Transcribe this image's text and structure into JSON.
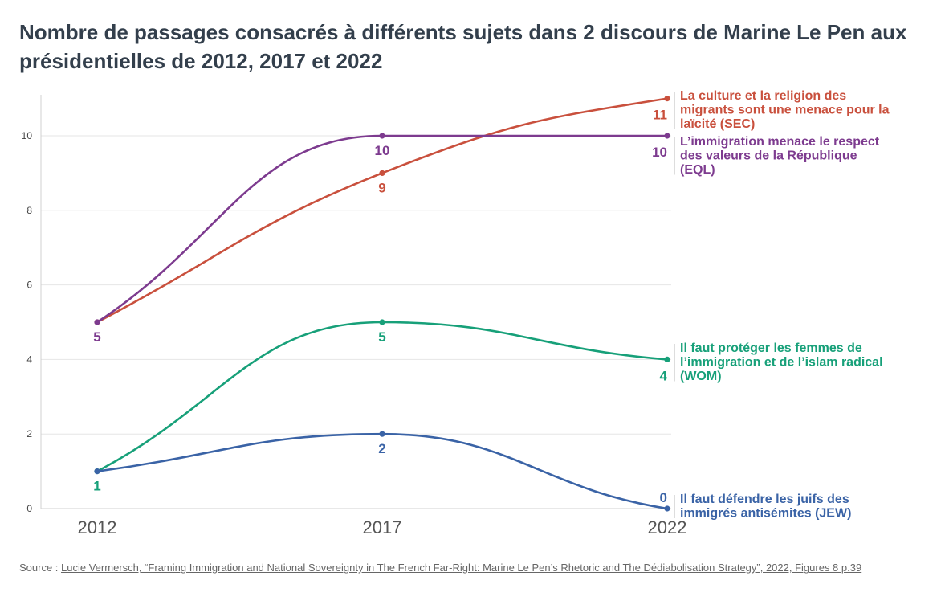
{
  "title": "Nombre de passages consacrés à différents sujets dans 2 discours de Marine Le Pen aux présidentielles de 2012, 2017 et 2022",
  "source": {
    "prefix": "Source : ",
    "link_text": "Lucie Vermersch, “Framing Immigration and National Sovereignty in The French Far-Right: Marine Le Pen’s Rhetoric and The Dédiabolisation Strategy”, 2022, Figures 8 p.39"
  },
  "chart_data": {
    "type": "line",
    "x": [
      "2012",
      "2017",
      "2022"
    ],
    "yticks": [
      "0",
      "2",
      "4",
      "6",
      "8",
      "10"
    ],
    "ylim": [
      0,
      11
    ],
    "grid": true,
    "series": [
      {
        "name": "La culture et la religion des migrants sont une menace pour la laïcité (SEC)",
        "label_lines": [
          "La culture et la religion des",
          "migrants sont une menace pour la",
          "laïcité (SEC)"
        ],
        "values": [
          5,
          9,
          11
        ],
        "color": "#c9503d"
      },
      {
        "name": "L’immigration menace le respect des valeurs de la République (EQL)",
        "label_lines": [
          "L’immigration menace le respect",
          "des valeurs de la République",
          "(EQL)"
        ],
        "values": [
          5,
          10,
          10
        ],
        "color": "#7d3b8f"
      },
      {
        "name": "Il faut protéger les femmes de l’immigration et de l’islam radical (WOM)",
        "label_lines": [
          "Il faut protéger les femmes de",
          "l’immigration et de l’islam radical",
          "(WOM)"
        ],
        "values": [
          1,
          5,
          4
        ],
        "color": "#17a079"
      },
      {
        "name": "Il faut défendre les juifs des immigrés antisémites (JEW)",
        "label_lines": [
          "Il faut défendre les juifs des",
          "immigrés antisémites (JEW)"
        ],
        "values": [
          1,
          2,
          0
        ],
        "color": "#3a63a6"
      }
    ],
    "data_labels": [
      {
        "series": 0,
        "index": 0,
        "text": "5",
        "color": "#7d3b8f",
        "pos": "below"
      },
      {
        "series": 2,
        "index": 0,
        "text": "1",
        "color": "#17a079",
        "pos": "below"
      },
      {
        "series": 1,
        "index": 1,
        "text": "10",
        "color": "#7d3b8f",
        "pos": "below"
      },
      {
        "series": 0,
        "index": 1,
        "text": "9",
        "color": "#c9503d",
        "pos": "below"
      },
      {
        "series": 2,
        "index": 1,
        "text": "5",
        "color": "#17a079",
        "pos": "below"
      },
      {
        "series": 3,
        "index": 1,
        "text": "2",
        "color": "#3a63a6",
        "pos": "below"
      },
      {
        "series": 0,
        "index": 2,
        "text": "11",
        "color": "#c9503d",
        "pos": "below-left"
      },
      {
        "series": 1,
        "index": 2,
        "text": "10",
        "color": "#7d3b8f",
        "pos": "below-left"
      },
      {
        "series": 2,
        "index": 2,
        "text": "4",
        "color": "#17a079",
        "pos": "below-left"
      },
      {
        "series": 3,
        "index": 2,
        "text": "0",
        "color": "#3a63a6",
        "pos": "above-left"
      }
    ]
  }
}
